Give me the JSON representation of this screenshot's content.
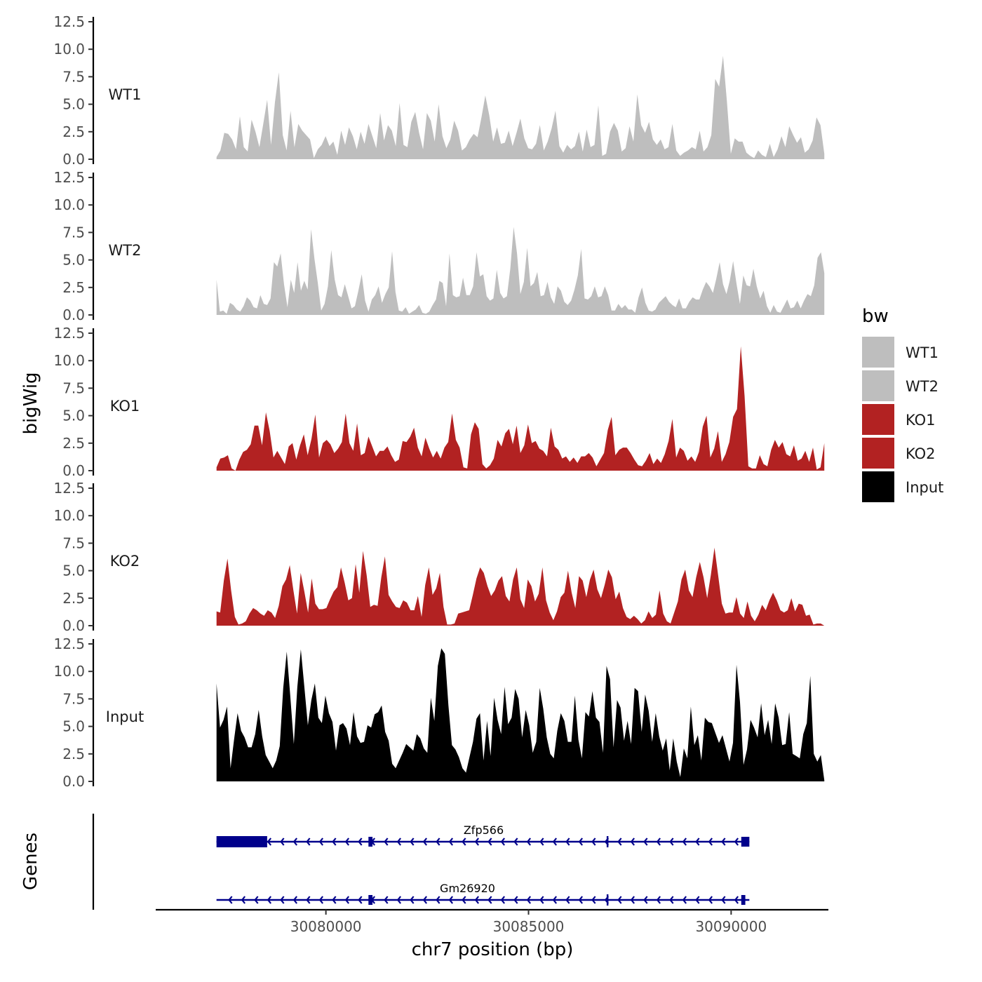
{
  "chart_data": {
    "type": "area",
    "chromosome": "chr7",
    "ylabel": "bigWig",
    "xlabel": "chr7 position (bp)",
    "genes_label": "Genes",
    "ylim": [
      0,
      12.5
    ],
    "y_ticks": [
      "0.0",
      "2.5",
      "5.0",
      "7.5",
      "10.0",
      "12.5"
    ],
    "x_ticks": [
      {
        "value": 30080000,
        "label": "30080000"
      },
      {
        "value": 30085000,
        "label": "30085000"
      },
      {
        "value": 30090000,
        "label": "30090000"
      }
    ],
    "x_range": [
      30077300,
      30092300
    ],
    "axis_domain": [
      30075800,
      30092400
    ],
    "colors": {
      "WT1": "#bebebe",
      "WT2": "#bebebe",
      "KO1": "#b22222",
      "KO2": "#b22222",
      "Input": "#000000",
      "gene": "#00008b"
    },
    "series": [
      {
        "name": "WT1",
        "values": [
          0.2,
          0.8,
          2.4,
          2.3,
          1.8,
          0.9,
          3.9,
          1.1,
          0.7,
          3.6,
          2.5,
          1.1,
          3.2,
          5.4,
          1.3,
          5.2,
          7.9,
          2.2,
          0.8,
          4.4,
          1.1,
          3.2,
          2.6,
          2.2,
          1.8,
          0.1,
          0.9,
          1.3,
          2.1,
          1.2,
          1.6,
          0.4,
          2.6,
          1.3,
          2.9,
          2.1,
          0.9,
          2.5,
          1.4,
          3.2,
          2.1,
          1.0,
          4.2,
          1.7,
          3.1,
          2.6,
          1.2,
          5.1,
          1.3,
          1.1,
          3.4,
          4.3,
          2.4,
          0.9,
          4.2,
          3.5,
          1.6,
          5.0,
          2.1,
          1.0,
          1.8,
          3.5,
          2.6,
          0.8,
          1.1,
          1.8,
          2.3,
          2.0,
          3.8,
          5.8,
          4.0,
          1.6,
          2.9,
          1.4,
          1.5,
          2.6,
          1.2,
          2.4,
          3.7,
          1.9,
          1.0,
          0.9,
          1.4,
          3.1,
          0.8,
          1.6,
          2.8,
          4.4,
          1.2,
          0.6,
          1.3,
          0.9,
          1.2,
          2.5,
          0.7,
          2.7,
          1.1,
          1.3,
          4.9,
          0.3,
          0.5,
          2.5,
          3.3,
          2.6,
          0.7,
          1.0,
          3.0,
          1.6,
          5.9,
          3.1,
          2.4,
          3.4,
          1.8,
          1.3,
          1.8,
          0.9,
          1.1,
          3.2,
          0.8,
          0.3,
          0.6,
          0.8,
          1.1,
          0.9,
          2.6,
          0.7,
          1.1,
          2.2,
          7.3,
          6.6,
          9.4,
          5.2,
          0.5,
          1.9,
          1.6,
          1.6,
          0.6,
          0.3,
          0.1,
          0.8,
          0.4,
          0.2,
          1.4,
          0.2,
          0.9,
          2.1,
          1.1,
          3.0,
          2.2,
          1.5,
          2.0,
          0.6,
          0.9,
          1.7,
          3.8,
          3.1,
          0.5
        ]
      },
      {
        "name": "WT2",
        "values": [
          3.2,
          0.3,
          0.4,
          0.1,
          1.1,
          0.9,
          0.5,
          0.3,
          0.8,
          1.6,
          1.3,
          0.7,
          0.6,
          1.8,
          1.0,
          0.9,
          1.5,
          4.8,
          4.4,
          5.6,
          2.8,
          0.7,
          3.2,
          2.0,
          4.8,
          2.2,
          3.1,
          2.3,
          7.8,
          5.1,
          2.9,
          0.4,
          1.0,
          2.6,
          5.9,
          3.2,
          1.8,
          1.6,
          2.8,
          1.7,
          0.6,
          0.8,
          2.2,
          3.7,
          1.3,
          0.3,
          1.4,
          1.8,
          2.6,
          1.1,
          1.9,
          2.5,
          5.8,
          2.1,
          0.4,
          0.3,
          0.7,
          0.1,
          0.3,
          0.5,
          0.9,
          0.2,
          0.1,
          0.3,
          0.9,
          1.4,
          3.1,
          2.9,
          0.8,
          5.6,
          1.8,
          1.6,
          1.7,
          3.4,
          1.8,
          1.8,
          2.6,
          5.7,
          3.5,
          3.7,
          1.7,
          1.3,
          1.5,
          4.1,
          2.0,
          1.5,
          1.7,
          4.2,
          8.0,
          5.6,
          1.9,
          3.0,
          6.1,
          2.6,
          2.9,
          3.9,
          1.7,
          1.8,
          3.0,
          1.6,
          1.0,
          2.6,
          2.2,
          1.2,
          0.9,
          1.3,
          2.3,
          3.6,
          6.0,
          1.5,
          1.4,
          1.7,
          2.6,
          1.6,
          1.7,
          2.6,
          1.8,
          0.4,
          0.4,
          1.0,
          0.6,
          0.9,
          0.5,
          0.5,
          0.2,
          1.6,
          2.5,
          1.1,
          0.4,
          0.3,
          0.5,
          1.1,
          1.4,
          1.7,
          1.2,
          0.9,
          0.7,
          1.5,
          0.6,
          0.6,
          1.2,
          1.6,
          1.4,
          1.4,
          2.3,
          3.0,
          2.6,
          2.0,
          3.3,
          4.8,
          2.8,
          1.9,
          3.1,
          4.9,
          2.8,
          1.0,
          3.6,
          2.7,
          2.6,
          4.2,
          2.6,
          1.5,
          2.2,
          0.8,
          0.2,
          0.9,
          0.3,
          0.2,
          0.8,
          1.4,
          0.6,
          0.7,
          1.3,
          0.6,
          1.3,
          1.9,
          1.7,
          2.7,
          5.2,
          5.7,
          3.8
        ]
      },
      {
        "name": "KO1",
        "values": [
          0.3,
          1.1,
          1.2,
          1.4,
          0.2,
          0.0,
          1.0,
          1.7,
          1.9,
          2.4,
          4.1,
          4.1,
          2.3,
          5.3,
          3.6,
          1.2,
          1.8,
          1.2,
          0.6,
          2.2,
          2.5,
          1.0,
          2.3,
          3.3,
          1.4,
          2.9,
          5.1,
          1.2,
          2.5,
          2.8,
          2.4,
          1.6,
          2.0,
          2.6,
          5.2,
          2.5,
          1.8,
          4.3,
          1.4,
          1.6,
          3.1,
          2.2,
          1.3,
          1.8,
          1.8,
          2.2,
          1.4,
          0.8,
          1.0,
          2.7,
          2.6,
          3.1,
          3.9,
          2.1,
          1.3,
          3.0,
          2.0,
          1.2,
          1.8,
          1.1,
          2.1,
          2.6,
          5.2,
          2.8,
          2.1,
          0.3,
          0.2,
          3.3,
          4.4,
          3.8,
          0.6,
          0.2,
          0.5,
          1.1,
          2.8,
          2.2,
          3.4,
          3.8,
          2.4,
          4.1,
          1.6,
          2.3,
          4.2,
          2.5,
          2.7,
          2.0,
          1.8,
          1.3,
          3.9,
          2.2,
          1.9,
          1.1,
          1.3,
          0.8,
          1.2,
          0.7,
          1.3,
          1.3,
          1.6,
          1.2,
          0.4,
          1.0,
          1.6,
          3.7,
          4.9,
          1.4,
          1.9,
          2.1,
          2.1,
          1.6,
          1.0,
          0.5,
          0.4,
          0.9,
          1.6,
          0.6,
          1.1,
          0.7,
          1.5,
          2.7,
          4.7,
          1.2,
          2.1,
          1.8,
          0.9,
          1.3,
          0.8,
          1.7,
          4.0,
          5.0,
          1.2,
          2.0,
          3.6,
          0.8,
          1.5,
          2.6,
          4.9,
          5.6,
          11.3,
          6.8,
          0.4,
          0.2,
          0.2,
          1.4,
          0.6,
          0.4,
          1.9,
          2.8,
          2.1,
          2.6,
          1.5,
          1.3,
          2.3,
          0.9,
          1.1,
          1.8,
          0.8,
          2.1,
          0.1,
          0.3,
          2.5
        ]
      },
      {
        "name": "KO2",
        "values": [
          1.3,
          1.2,
          4.1,
          6.1,
          3.2,
          0.8,
          0.1,
          0.2,
          0.4,
          1.1,
          1.6,
          1.4,
          1.1,
          0.9,
          1.4,
          1.2,
          0.7,
          1.8,
          3.6,
          4.2,
          5.5,
          3.2,
          1.1,
          4.8,
          3.1,
          1.2,
          4.3,
          2.0,
          1.5,
          1.5,
          1.6,
          2.4,
          3.1,
          3.5,
          5.3,
          3.9,
          2.3,
          2.5,
          5.6,
          3.0,
          6.8,
          4.6,
          1.7,
          1.9,
          1.8,
          4.4,
          6.3,
          2.8,
          2.2,
          1.7,
          1.6,
          2.3,
          2.1,
          1.4,
          1.4,
          2.7,
          0.8,
          3.7,
          5.3,
          2.8,
          3.4,
          4.8,
          1.7,
          0.1,
          0.1,
          0.2,
          1.1,
          1.2,
          1.3,
          1.4,
          2.8,
          4.3,
          5.3,
          4.8,
          3.6,
          2.7,
          3.2,
          4.1,
          4.5,
          2.7,
          2.2,
          4.2,
          5.3,
          2.4,
          1.6,
          4.2,
          3.6,
          2.2,
          2.9,
          5.3,
          2.3,
          1.2,
          0.5,
          1.3,
          2.6,
          3.0,
          5.0,
          3.0,
          1.6,
          4.5,
          4.1,
          2.6,
          4.2,
          5.1,
          3.3,
          2.5,
          3.7,
          5.1,
          4.4,
          2.4,
          3.1,
          1.6,
          0.8,
          0.6,
          0.9,
          0.6,
          0.2,
          0.5,
          1.3,
          0.7,
          1.0,
          3.2,
          1.1,
          0.4,
          0.2,
          1.2,
          2.2,
          4.2,
          5.1,
          3.2,
          2.6,
          4.4,
          5.8,
          4.4,
          2.5,
          4.6,
          7.1,
          4.6,
          2.0,
          1.1,
          1.2,
          1.2,
          2.6,
          1.1,
          0.7,
          2.2,
          0.9,
          0.4,
          1.0,
          1.9,
          1.4,
          2.3,
          3.0,
          2.3,
          1.4,
          1.2,
          1.4,
          2.5,
          1.3,
          2.0,
          1.9,
          0.9,
          1.0,
          0.1,
          0.2,
          0.2,
          0.0
        ]
      },
      {
        "name": "Input",
        "values": [
          8.9,
          4.9,
          5.6,
          6.8,
          1.2,
          3.8,
          6.2,
          4.6,
          4.0,
          3.1,
          3.1,
          4.3,
          6.5,
          4.1,
          2.4,
          1.8,
          1.2,
          1.9,
          3.2,
          8.5,
          11.8,
          7.8,
          3.4,
          8.6,
          12.0,
          8.6,
          5.1,
          7.4,
          8.9,
          5.8,
          5.3,
          7.8,
          6.2,
          5.4,
          2.8,
          5.1,
          5.3,
          4.8,
          3.3,
          6.3,
          4.1,
          3.5,
          3.6,
          5.1,
          4.9,
          6.1,
          6.3,
          6.9,
          4.5,
          3.7,
          1.6,
          1.2,
          1.9,
          2.6,
          3.4,
          3.1,
          2.8,
          4.3,
          3.9,
          3.0,
          2.6,
          7.6,
          5.5,
          10.5,
          12.1,
          11.6,
          6.9,
          3.3,
          2.9,
          2.2,
          1.2,
          0.8,
          2.2,
          3.6,
          5.7,
          6.2,
          1.9,
          5.5,
          2.3,
          7.6,
          5.6,
          4.3,
          8.6,
          5.2,
          5.8,
          8.4,
          7.5,
          4.0,
          6.5,
          5.1,
          2.6,
          3.6,
          8.5,
          6.6,
          4.0,
          2.5,
          2.1,
          4.6,
          6.2,
          5.5,
          3.6,
          3.6,
          7.8,
          3.8,
          2.1,
          6.3,
          5.9,
          8.2,
          5.8,
          5.4,
          2.6,
          10.5,
          9.3,
          3.1,
          7.4,
          6.7,
          3.7,
          5.5,
          3.4,
          8.5,
          8.2,
          4.5,
          7.9,
          6.4,
          3.6,
          6.2,
          4.1,
          2.8,
          3.9,
          1.0,
          3.9,
          1.8,
          0.4,
          3.0,
          2.1,
          6.8,
          3.3,
          4.2,
          1.9,
          5.8,
          5.4,
          5.3,
          4.4,
          3.5,
          4.2,
          3.0,
          1.8,
          3.5,
          10.6,
          7.2,
          1.5,
          2.9,
          5.6,
          4.9,
          4.0,
          7.1,
          4.2,
          5.6,
          3.4,
          7.1,
          5.8,
          3.3,
          3.4,
          6.3,
          2.5,
          2.3,
          2.1,
          4.3,
          5.3,
          9.6,
          2.5,
          1.8,
          2.4,
          0.1
        ]
      }
    ],
    "genes": [
      {
        "name": "Zfp566",
        "strand": "-",
        "start": 30077300,
        "end": 30090450,
        "exons": [
          [
            30077300,
            30078550
          ],
          [
            30081050,
            30081150
          ],
          [
            30090250,
            30090450
          ]
        ],
        "minor_ticks": [
          30086950
        ]
      },
      {
        "name": "Gm26920",
        "strand": "-",
        "start": 30077300,
        "end": 30090450,
        "exons": [
          [
            30081050,
            30081150
          ],
          [
            30090250,
            30090350
          ]
        ],
        "minor_ticks": [
          30086950
        ]
      }
    ]
  },
  "legend": {
    "title": "bw",
    "items": [
      {
        "label": "WT1",
        "color": "#bebebe"
      },
      {
        "label": "WT2",
        "color": "#bebebe"
      },
      {
        "label": "KO1",
        "color": "#b22222"
      },
      {
        "label": "KO2",
        "color": "#b22222"
      },
      {
        "label": "Input",
        "color": "#000000"
      }
    ]
  }
}
